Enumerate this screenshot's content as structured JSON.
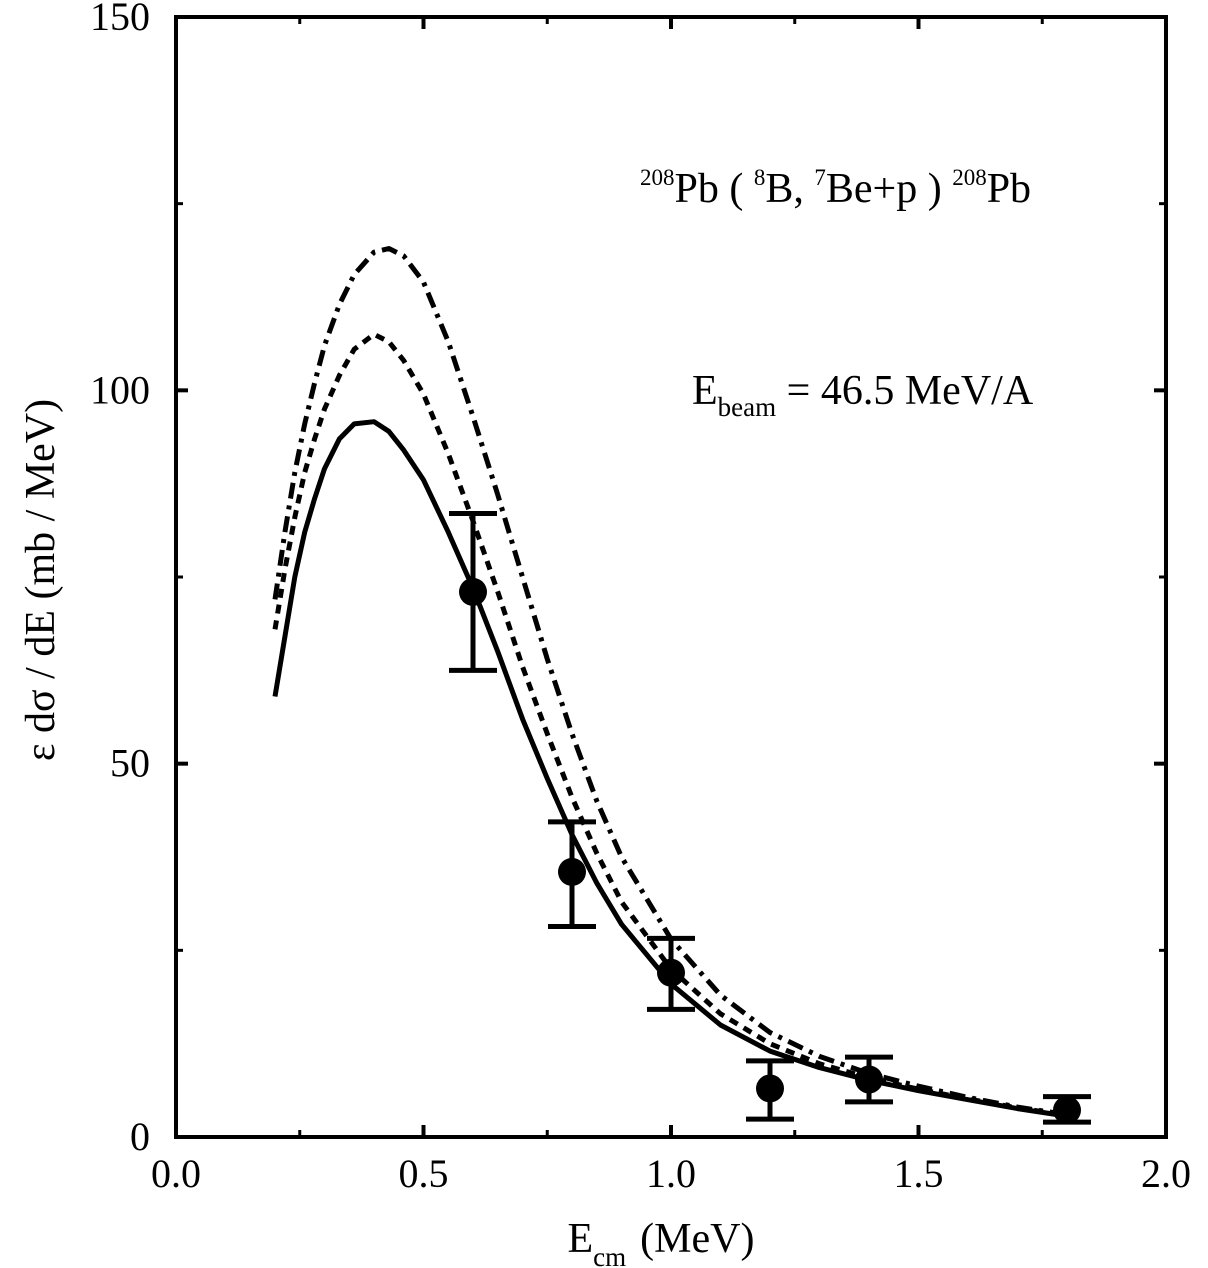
{
  "chart_data": {
    "type": "line",
    "title": "",
    "xlabel": {
      "main": "E",
      "sub": "cm",
      "unit": "(MeV)"
    },
    "ylabel": "ε dσ / dE (mb / MeV)",
    "xlim": [
      0.0,
      2.0
    ],
    "ylim": [
      0,
      150
    ],
    "x_ticks": [
      0.0,
      0.5,
      1.0,
      1.5,
      2.0
    ],
    "x_tick_labels": [
      "0.0",
      "0.5",
      "1.0",
      "1.5",
      "2.0"
    ],
    "y_ticks": [
      0,
      50,
      100,
      150
    ],
    "y_tick_labels": [
      "0",
      "50",
      "100",
      "150"
    ],
    "grid": false,
    "legend": "none",
    "annotations": {
      "reaction": {
        "parts": [
          {
            "sup": "208",
            "text": "Pb ( "
          },
          {
            "sup": "8",
            "text": "B, "
          },
          {
            "sup": "7",
            "text": "Be+p ) "
          },
          {
            "sup": "208",
            "text": "Pb"
          }
        ]
      },
      "beam": {
        "main": "E",
        "sub": "beam",
        "rest": " = 46.5 MeV/A"
      }
    },
    "series": [
      {
        "style": "solid",
        "color": "#000000",
        "x": [
          0.2,
          0.22,
          0.24,
          0.26,
          0.28,
          0.3,
          0.33,
          0.36,
          0.4,
          0.43,
          0.46,
          0.5,
          0.55,
          0.6,
          0.65,
          0.7,
          0.75,
          0.8,
          0.85,
          0.9,
          1.0,
          1.1,
          1.2,
          1.3,
          1.4,
          1.5,
          1.6,
          1.7,
          1.8
        ],
        "y": [
          59,
          67,
          75,
          81,
          85.5,
          89.5,
          93.5,
          95.5,
          95.8,
          94.5,
          92,
          88,
          81,
          73.5,
          65,
          56,
          48,
          40.5,
          34,
          28.5,
          20.5,
          15,
          11.5,
          9.3,
          7.6,
          6.2,
          5.0,
          3.8,
          2.8
        ]
      },
      {
        "style": "dashed",
        "color": "#000000",
        "x": [
          0.2,
          0.22,
          0.24,
          0.26,
          0.28,
          0.3,
          0.33,
          0.36,
          0.4,
          0.43,
          0.46,
          0.5,
          0.55,
          0.6,
          0.65,
          0.7,
          0.75,
          0.8,
          0.85,
          0.9,
          1.0,
          1.1,
          1.2,
          1.3,
          1.4,
          1.5,
          1.6,
          1.7,
          1.8
        ],
        "y": [
          68,
          76,
          83,
          89,
          93.5,
          97.5,
          102,
          105.5,
          107.5,
          106.5,
          104,
          99.5,
          91.5,
          82.5,
          73,
          63,
          54,
          45.5,
          38,
          31.5,
          22.5,
          16.5,
          12.5,
          9.8,
          7.9,
          6.4,
          5.1,
          3.9,
          2.9
        ]
      },
      {
        "style": "dashdot",
        "color": "#000000",
        "x": [
          0.2,
          0.22,
          0.24,
          0.26,
          0.28,
          0.3,
          0.33,
          0.36,
          0.4,
          0.43,
          0.46,
          0.5,
          0.55,
          0.6,
          0.65,
          0.7,
          0.75,
          0.8,
          0.85,
          0.9,
          1.0,
          1.1,
          1.2,
          1.3,
          1.4,
          1.5,
          1.6,
          1.7,
          1.8
        ],
        "y": [
          72,
          81,
          89,
          95.5,
          101,
          106,
          111.5,
          115.5,
          118.5,
          119,
          118,
          114.5,
          106.5,
          96.5,
          86,
          75,
          64,
          54,
          45,
          37.5,
          26.5,
          19,
          14,
          10.8,
          8.5,
          6.8,
          5.3,
          4.0,
          3.0
        ]
      }
    ],
    "points": {
      "marker": "filled-circle",
      "x": [
        0.6,
        0.8,
        1.0,
        1.2,
        1.4,
        1.8
      ],
      "y": [
        73,
        35.5,
        22,
        6.5,
        7.7,
        3.6
      ],
      "yerr_low": [
        10.5,
        7.3,
        4.9,
        4.1,
        3.0,
        1.6
      ],
      "yerr_high": [
        10.5,
        6.7,
        4.6,
        3.7,
        3.0,
        1.8
      ]
    }
  }
}
